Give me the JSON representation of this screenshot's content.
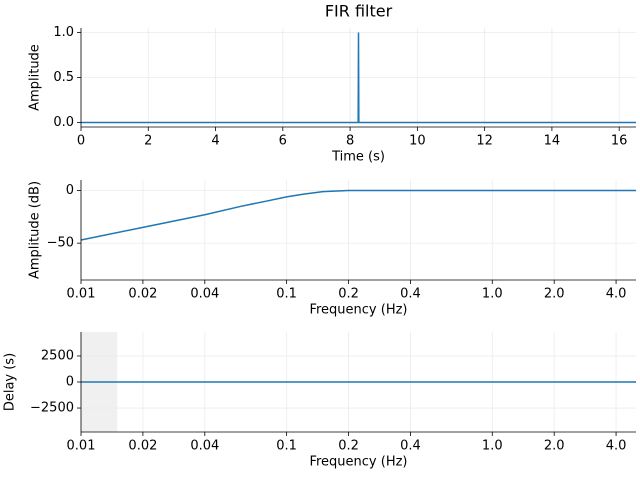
{
  "chart_data": [
    {
      "type": "line",
      "title": "FIR filter",
      "x_label": "Time (s)",
      "y_label": "Amplitude",
      "color": "#1f77b4",
      "x": [
        0,
        8.24,
        8.25,
        8.26,
        16.5
      ],
      "values": [
        0,
        0,
        1,
        0,
        0
      ],
      "xlim": [
        0,
        16.5
      ],
      "xticks": [
        0,
        2,
        4,
        6,
        8,
        10,
        12,
        14,
        16
      ],
      "ylim": [
        -0.05,
        1.05
      ],
      "yticks": [
        {
          "value": 0,
          "label": "0.0"
        },
        {
          "value": 0.5,
          "label": "0.5"
        },
        {
          "value": 1,
          "label": "1.0"
        }
      ],
      "grid": true
    },
    {
      "type": "line",
      "x_label": "Frequency (Hz)",
      "y_label": "Amplitude (dB)",
      "color": "#1f77b4",
      "log_x": true,
      "x": [
        0.01,
        0.02,
        0.04,
        0.06,
        0.08,
        0.1,
        0.12,
        0.15,
        0.2,
        5
      ],
      "values": [
        -47,
        -35,
        -23,
        -15,
        -10,
        -6,
        -3.5,
        -1,
        0,
        0
      ],
      "xlim": [
        0.01,
        5
      ],
      "xticks": [
        0.01,
        0.02,
        0.04,
        0.1,
        0.2,
        0.4,
        {
          "value": 1,
          "label": "1.0"
        },
        {
          "value": 2,
          "label": "2.0"
        },
        {
          "value": 4,
          "label": "4.0"
        }
      ],
      "ylim": [
        -85,
        10
      ],
      "yticks": [
        {
          "value": -50,
          "label": "−50"
        },
        0
      ],
      "grid": true
    },
    {
      "type": "line",
      "x_label": "Frequency (Hz)",
      "y_label": "Delay (s)",
      "color": "#1f77b4",
      "log_x": true,
      "x": [
        0.01,
        5
      ],
      "values": [
        0,
        0
      ],
      "shaded_region": [
        0.01,
        0.015
      ],
      "shade_color": "#f0f0f0",
      "xlim": [
        0.01,
        5
      ],
      "xticks": [
        0.01,
        0.02,
        0.04,
        0.1,
        0.2,
        0.4,
        {
          "value": 1,
          "label": "1.0"
        },
        {
          "value": 2,
          "label": "2.0"
        },
        {
          "value": 4,
          "label": "4.0"
        }
      ],
      "ylim": [
        -4800,
        4800
      ],
      "yticks": [
        2500,
        0,
        {
          "value": -2500,
          "label": "−2500"
        }
      ],
      "grid": true
    }
  ]
}
